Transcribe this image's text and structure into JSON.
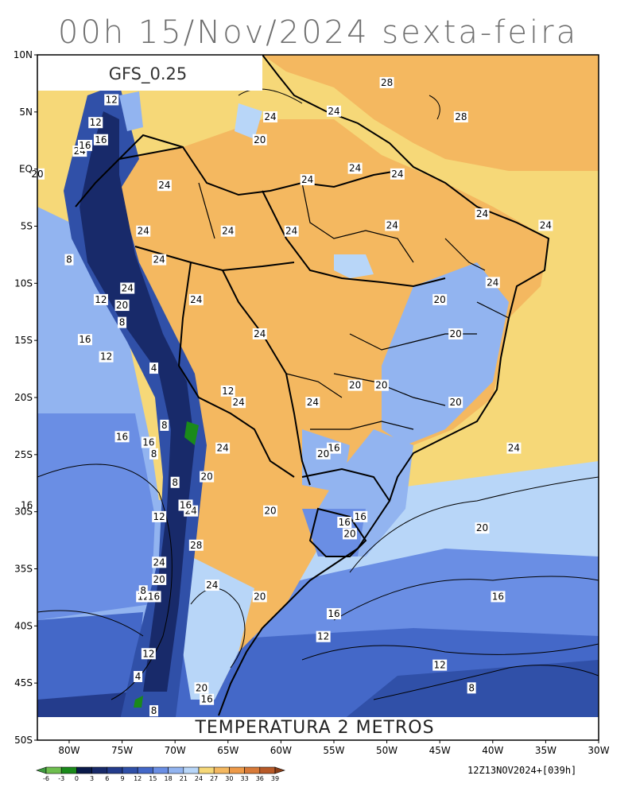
{
  "title": "00h 15/Nov/2024 sexta-feira",
  "model_label": "GFS_0.25",
  "variable_label": "TEMPERATURA 2 METROS",
  "run_info": "12Z13NOV2024+[039h]",
  "lat_ticks": [
    {
      "lat": 10,
      "label": "10N"
    },
    {
      "lat": 5,
      "label": "5N"
    },
    {
      "lat": 0,
      "label": "EQ"
    },
    {
      "lat": -5,
      "label": "5S"
    },
    {
      "lat": -10,
      "label": "10S"
    },
    {
      "lat": -15,
      "label": "15S"
    },
    {
      "lat": -20,
      "label": "20S"
    },
    {
      "lat": -25,
      "label": "25S"
    },
    {
      "lat": -30,
      "label": "30S"
    },
    {
      "lat": -35,
      "label": "35S"
    },
    {
      "lat": -40,
      "label": "40S"
    },
    {
      "lat": -45,
      "label": "45S"
    },
    {
      "lat": -50,
      "label": "50S"
    }
  ],
  "lon_ticks": [
    {
      "lon": -80,
      "label": "80W"
    },
    {
      "lon": -75,
      "label": "75W"
    },
    {
      "lon": -70,
      "label": "70W"
    },
    {
      "lon": -65,
      "label": "65W"
    },
    {
      "lon": -60,
      "label": "60W"
    },
    {
      "lon": -55,
      "label": "55W"
    },
    {
      "lon": -50,
      "label": "50W"
    },
    {
      "lon": -45,
      "label": "45W"
    },
    {
      "lon": -40,
      "label": "40W"
    },
    {
      "lon": -35,
      "label": "35W"
    },
    {
      "lon": -30,
      "label": "30W"
    }
  ],
  "colorbar": {
    "labels": [
      "-6",
      "-3",
      "0",
      "3",
      "6",
      "9",
      "12",
      "15",
      "18",
      "21",
      "24",
      "27",
      "30",
      "33",
      "36",
      "39"
    ],
    "colors": [
      "#3f9a3f",
      "#6fbf4f",
      "#1a8a1a",
      "#0a1a4a",
      "#182a6a",
      "#243c8c",
      "#3050a8",
      "#4468c8",
      "#6a8ee4",
      "#92b4f0",
      "#b8d6f8",
      "#f6d878",
      "#f4b860",
      "#ee9a48",
      "#d87a38",
      "#b85a28",
      "#8a3e18"
    ]
  },
  "contour_labels": [
    {
      "text": "28",
      "lon": -50,
      "lat": 7.5
    },
    {
      "text": "28",
      "lon": -43,
      "lat": 4.5
    },
    {
      "text": "24",
      "lon": -61,
      "lat": 4.5
    },
    {
      "text": "24",
      "lon": -55,
      "lat": 5
    },
    {
      "text": "20",
      "lon": -62,
      "lat": 2.5
    },
    {
      "text": "24",
      "lon": -53,
      "lat": 0
    },
    {
      "text": "24",
      "lon": -49,
      "lat": -0.5
    },
    {
      "text": "24",
      "lon": -57.5,
      "lat": -1
    },
    {
      "text": "24",
      "lon": -71,
      "lat": -1.5
    },
    {
      "text": "24",
      "lon": -73,
      "lat": -5.5
    },
    {
      "text": "24",
      "lon": -65,
      "lat": -5.5
    },
    {
      "text": "24",
      "lon": -59,
      "lat": -5.5
    },
    {
      "text": "24",
      "lon": -49.5,
      "lat": -5
    },
    {
      "text": "24",
      "lon": -41,
      "lat": -4
    },
    {
      "text": "24",
      "lon": -35,
      "lat": -5
    },
    {
      "text": "24",
      "lon": -71.5,
      "lat": -8
    },
    {
      "text": "24",
      "lon": -74.5,
      "lat": -10.5
    },
    {
      "text": "24",
      "lon": -68,
      "lat": -11.5
    },
    {
      "text": "24",
      "lon": -40,
      "lat": -10
    },
    {
      "text": "20",
      "lon": -75,
      "lat": -12
    },
    {
      "text": "24",
      "lon": -62,
      "lat": -14.5
    },
    {
      "text": "20",
      "lon": -45,
      "lat": -11.5
    },
    {
      "text": "20",
      "lon": -43.5,
      "lat": -14.5
    },
    {
      "text": "20",
      "lon": -53,
      "lat": -19
    },
    {
      "text": "20",
      "lon": -50.5,
      "lat": -19
    },
    {
      "text": "24",
      "lon": -57,
      "lat": -20.5
    },
    {
      "text": "24",
      "lon": -64,
      "lat": -20.5
    },
    {
      "text": "20",
      "lon": -43.5,
      "lat": -20.5
    },
    {
      "text": "24",
      "lon": -38,
      "lat": -24.5
    },
    {
      "text": "16",
      "lon": -55,
      "lat": -24.5
    },
    {
      "text": "20",
      "lon": -56,
      "lat": -25
    },
    {
      "text": "24",
      "lon": -65.5,
      "lat": -24.5
    },
    {
      "text": "20",
      "lon": -67,
      "lat": -27
    },
    {
      "text": "24",
      "lon": -68.5,
      "lat": -30
    },
    {
      "text": "16",
      "lon": -69,
      "lat": -29.5
    },
    {
      "text": "20",
      "lon": -61,
      "lat": -30
    },
    {
      "text": "16",
      "lon": -52.5,
      "lat": -30.5
    },
    {
      "text": "16",
      "lon": -54,
      "lat": -31
    },
    {
      "text": "20",
      "lon": -53.5,
      "lat": -32
    },
    {
      "text": "20",
      "lon": -41,
      "lat": -31.5
    },
    {
      "text": "28",
      "lon": -68,
      "lat": -33
    },
    {
      "text": "24",
      "lon": -71.5,
      "lat": -34.5
    },
    {
      "text": "20",
      "lon": -71.5,
      "lat": -36
    },
    {
      "text": "24",
      "lon": -66.5,
      "lat": -36.5
    },
    {
      "text": "20",
      "lon": -62,
      "lat": -37.5
    },
    {
      "text": "16",
      "lon": -39.5,
      "lat": -37.5
    },
    {
      "text": "16",
      "lon": -55,
      "lat": -39
    },
    {
      "text": "12",
      "lon": -56,
      "lat": -41
    },
    {
      "text": "12",
      "lon": -45,
      "lat": -43.5
    },
    {
      "text": "12",
      "lon": -72.5,
      "lat": -42.5
    },
    {
      "text": "8",
      "lon": -42,
      "lat": -45.5
    },
    {
      "text": "20",
      "lon": -67.5,
      "lat": -45.5
    },
    {
      "text": "16",
      "lon": -67,
      "lat": -46.5
    },
    {
      "text": "4",
      "lon": -73.5,
      "lat": -44.5
    },
    {
      "text": "8",
      "lon": -72,
      "lat": -47.5
    },
    {
      "text": "16",
      "lon": -75,
      "lat": -23.5
    },
    {
      "text": "16",
      "lon": -72.5,
      "lat": -24
    },
    {
      "text": "8",
      "lon": -71,
      "lat": -22.5
    },
    {
      "text": "8",
      "lon": -72,
      "lat": -25
    },
    {
      "text": "8",
      "lon": -70,
      "lat": -27.5
    },
    {
      "text": "16",
      "lon": -84,
      "lat": -29.5
    },
    {
      "text": "12",
      "lon": -71.5,
      "lat": -30.5
    },
    {
      "text": "12",
      "lon": -65,
      "lat": -19.5
    },
    {
      "text": "4",
      "lon": -72,
      "lat": -17.5
    },
    {
      "text": "12",
      "lon": -76.5,
      "lat": -16.5
    },
    {
      "text": "16",
      "lon": -78.5,
      "lat": -15
    },
    {
      "text": "8",
      "lon": -75,
      "lat": -13.5
    },
    {
      "text": "12",
      "lon": -77,
      "lat": -11.5
    },
    {
      "text": "8",
      "lon": -80,
      "lat": -8
    },
    {
      "text": "20",
      "lon": -83,
      "lat": -0.5
    },
    {
      "text": "24",
      "lon": -79,
      "lat": 1.5
    },
    {
      "text": "16",
      "lon": -77,
      "lat": 2.5
    },
    {
      "text": "16",
      "lon": -78.5,
      "lat": 2
    },
    {
      "text": "12",
      "lon": -77.5,
      "lat": 4
    },
    {
      "text": "12",
      "lon": -76,
      "lat": 6
    },
    {
      "text": "12",
      "lon": -73,
      "lat": -37.5
    },
    {
      "text": "8",
      "lon": -73,
      "lat": -37
    },
    {
      "text": "16",
      "lon": -72,
      "lat": -37.5
    }
  ]
}
